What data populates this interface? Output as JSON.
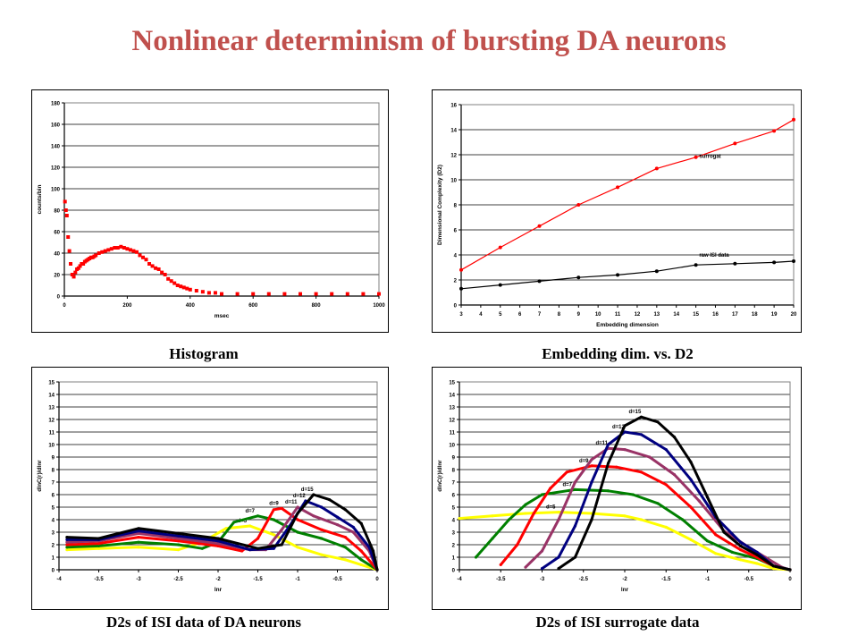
{
  "slide": {
    "title": "Nonlinear determinism of bursting DA neurons",
    "captions": {
      "histogram": "Histogram",
      "embedding": "Embedding dim. vs. D2",
      "isi": "D2s of ISI data of DA neurons",
      "surrogate": "D2s of ISI surrogate data"
    }
  },
  "chart_data": [
    {
      "id": "histogram",
      "type": "scatter",
      "xlabel": "msec",
      "ylabel": "counts/bin",
      "xlim": [
        0,
        1000
      ],
      "ylim": [
        0,
        180
      ],
      "xticks": [
        0,
        200,
        400,
        600,
        800,
        1000
      ],
      "yticks": [
        0,
        20,
        40,
        60,
        80,
        100,
        120,
        140,
        160,
        180
      ],
      "grid": true,
      "series": [
        {
          "color": "#ff0000",
          "x": [
            2,
            5,
            8,
            12,
            16,
            20,
            25,
            30,
            35,
            40,
            45,
            50,
            55,
            60,
            65,
            70,
            75,
            80,
            85,
            90,
            95,
            100,
            110,
            120,
            130,
            140,
            150,
            160,
            170,
            180,
            190,
            200,
            210,
            220,
            230,
            240,
            250,
            260,
            270,
            280,
            290,
            300,
            310,
            320,
            330,
            340,
            350,
            360,
            370,
            380,
            390,
            400,
            420,
            440,
            460,
            480,
            500,
            550,
            600,
            650,
            700,
            750,
            800,
            850,
            900,
            950,
            1000
          ],
          "y": [
            88,
            80,
            75,
            55,
            42,
            30,
            20,
            18,
            22,
            25,
            26,
            28,
            30,
            30,
            32,
            33,
            34,
            35,
            36,
            36,
            37,
            38,
            40,
            41,
            42,
            43,
            44,
            45,
            45,
            46,
            45,
            44,
            43,
            42,
            41,
            38,
            36,
            34,
            30,
            28,
            26,
            25,
            22,
            20,
            16,
            14,
            12,
            10,
            9,
            8,
            7,
            6,
            5,
            4,
            3,
            3,
            2,
            2,
            2,
            2,
            2,
            2,
            2,
            2,
            2,
            2,
            2
          ]
        }
      ]
    },
    {
      "id": "embedding",
      "type": "line",
      "xlabel": "Embedding dimension",
      "ylabel": "Dimensional Complexity (D2)",
      "xlim": [
        3,
        20
      ],
      "ylim": [
        0,
        16
      ],
      "xticks": [
        3,
        4,
        5,
        6,
        7,
        8,
        9,
        10,
        11,
        12,
        13,
        14,
        15,
        16,
        17,
        18,
        19,
        20
      ],
      "yticks": [
        0,
        2,
        4,
        6,
        8,
        10,
        12,
        14,
        16
      ],
      "grid": true,
      "annotations": [
        "surrogat",
        "raw ISI data"
      ],
      "series": [
        {
          "label": "surrogat",
          "color": "#ff0000",
          "x": [
            3,
            5,
            7,
            9,
            11,
            13,
            15,
            17,
            19,
            20
          ],
          "y": [
            2.8,
            4.6,
            6.3,
            8.0,
            9.4,
            10.9,
            11.8,
            12.9,
            13.9,
            14.8
          ]
        },
        {
          "label": "raw ISI data",
          "color": "#000000",
          "x": [
            3,
            5,
            7,
            9,
            11,
            13,
            15,
            17,
            19,
            20
          ],
          "y": [
            1.3,
            1.6,
            1.9,
            2.2,
            2.4,
            2.7,
            3.2,
            3.3,
            3.4,
            3.5
          ]
        }
      ]
    },
    {
      "id": "isi",
      "type": "line",
      "xlabel": "lnr",
      "ylabel": "dlnC(r)/dlnr",
      "xlim": [
        -4,
        0
      ],
      "ylim": [
        0,
        15
      ],
      "xticks": [
        -4,
        -3.5,
        -3,
        -2.5,
        -2,
        -1.5,
        -1,
        -0.5,
        0
      ],
      "yticks": [
        0,
        1,
        2,
        3,
        4,
        5,
        6,
        7,
        8,
        9,
        10,
        11,
        12,
        13,
        14,
        15
      ],
      "grid": true,
      "series": [
        {
          "label": "d=5",
          "color": "#ffff00",
          "x": [
            -3.9,
            -3.5,
            -3.0,
            -2.5,
            -2.2,
            -1.9,
            -1.6,
            -1.3,
            -1.0,
            -0.7,
            -0.4,
            -0.2,
            0
          ],
          "y": [
            1.6,
            1.7,
            1.8,
            1.6,
            2.2,
            3.3,
            3.5,
            2.8,
            1.8,
            1.2,
            0.8,
            0.4,
            0
          ]
        },
        {
          "label": "d=7",
          "color": "#008000",
          "x": [
            -3.9,
            -3.5,
            -3.0,
            -2.5,
            -2.2,
            -2.0,
            -1.8,
            -1.5,
            -1.3,
            -1.0,
            -0.7,
            -0.4,
            -0.2,
            0
          ],
          "y": [
            1.8,
            1.9,
            2.2,
            2.0,
            1.7,
            2.2,
            3.8,
            4.3,
            4.0,
            3.0,
            2.5,
            1.8,
            0.8,
            0
          ]
        },
        {
          "label": "d=9",
          "color": "#ff0000",
          "x": [
            -3.9,
            -3.5,
            -3.0,
            -2.5,
            -2.0,
            -1.7,
            -1.5,
            -1.3,
            -1.2,
            -1.0,
            -0.7,
            -0.4,
            -0.2,
            0
          ],
          "y": [
            2.0,
            2.1,
            2.6,
            2.3,
            1.9,
            1.5,
            2.5,
            4.8,
            4.9,
            4.0,
            3.2,
            2.6,
            1.5,
            0
          ]
        },
        {
          "label": "d=11",
          "color": "#993366",
          "x": [
            -3.9,
            -3.5,
            -3.0,
            -2.5,
            -2.0,
            -1.6,
            -1.4,
            -1.2,
            -1.0,
            -0.8,
            -0.5,
            -0.3,
            -0.1,
            0
          ],
          "y": [
            2.2,
            2.3,
            2.9,
            2.5,
            2.1,
            1.6,
            1.6,
            3.2,
            5.0,
            4.3,
            3.6,
            3.0,
            1.5,
            0
          ]
        },
        {
          "label": "d=12",
          "color": "#000080",
          "x": [
            -3.9,
            -3.5,
            -3.0,
            -2.5,
            -2.0,
            -1.6,
            -1.3,
            -1.1,
            -0.9,
            -0.7,
            -0.5,
            -0.3,
            -0.1,
            0
          ],
          "y": [
            2.4,
            2.4,
            3.1,
            2.7,
            2.3,
            1.6,
            1.7,
            3.5,
            5.5,
            5.0,
            4.2,
            3.4,
            1.8,
            0
          ]
        },
        {
          "label": "d=15",
          "color": "#000000",
          "x": [
            -3.9,
            -3.5,
            -3.0,
            -2.5,
            -2.0,
            -1.5,
            -1.2,
            -1.0,
            -0.8,
            -0.6,
            -0.4,
            -0.2,
            -0.05,
            0
          ],
          "y": [
            2.6,
            2.5,
            3.3,
            2.9,
            2.5,
            1.7,
            2.0,
            4.5,
            6.0,
            5.6,
            4.8,
            3.7,
            1.5,
            0
          ]
        }
      ]
    },
    {
      "id": "surrogate",
      "type": "line",
      "xlabel": "lnr",
      "ylabel": "dlnC(r)/dlnr",
      "xlim": [
        -4,
        0
      ],
      "ylim": [
        0,
        15
      ],
      "xticks": [
        -4,
        -3.5,
        -3,
        -2.5,
        -2,
        -1.5,
        -1,
        -0.5,
        0
      ],
      "yticks": [
        0,
        1,
        2,
        3,
        4,
        5,
        6,
        7,
        8,
        9,
        10,
        11,
        12,
        13,
        14,
        15
      ],
      "grid": true,
      "series": [
        {
          "label": "d=5",
          "color": "#ffff00",
          "x": [
            -4,
            -3.6,
            -3.2,
            -2.8,
            -2.4,
            -2.0,
            -1.8,
            -1.5,
            -1.2,
            -0.9,
            -0.6,
            -0.4,
            -0.2,
            0
          ],
          "y": [
            4.1,
            4.3,
            4.5,
            4.6,
            4.5,
            4.3,
            4.0,
            3.4,
            2.4,
            1.3,
            0.8,
            0.5,
            0.1,
            0
          ]
        },
        {
          "label": "d=7",
          "color": "#008000",
          "x": [
            -3.8,
            -3.6,
            -3.4,
            -3.2,
            -3.0,
            -2.6,
            -2.2,
            -1.9,
            -1.6,
            -1.3,
            -1.0,
            -0.7,
            -0.4,
            -0.2,
            0
          ],
          "y": [
            1.0,
            2.5,
            4.0,
            5.2,
            6.0,
            6.4,
            6.3,
            6.0,
            5.3,
            4.0,
            2.3,
            1.4,
            0.9,
            0.3,
            0
          ]
        },
        {
          "label": "d=9",
          "color": "#ff0000",
          "x": [
            -3.5,
            -3.3,
            -3.1,
            -2.9,
            -2.7,
            -2.4,
            -2.1,
            -1.8,
            -1.5,
            -1.2,
            -0.9,
            -0.6,
            -0.4,
            -0.2,
            0
          ],
          "y": [
            0.4,
            2.0,
            4.5,
            6.5,
            7.8,
            8.3,
            8.2,
            7.8,
            6.8,
            5.0,
            2.8,
            1.6,
            1.0,
            0.3,
            0
          ]
        },
        {
          "label": "d=11",
          "color": "#993366",
          "x": [
            -3.2,
            -3.0,
            -2.8,
            -2.6,
            -2.4,
            -2.2,
            -2.0,
            -1.7,
            -1.4,
            -1.1,
            -0.8,
            -0.5,
            -0.3,
            -0.1,
            0
          ],
          "y": [
            0.2,
            1.5,
            4.0,
            7.0,
            8.8,
            9.7,
            9.6,
            9.0,
            7.6,
            5.5,
            3.1,
            1.8,
            1.0,
            0.2,
            0
          ]
        },
        {
          "label": "d=12",
          "color": "#000080",
          "x": [
            -3.0,
            -2.8,
            -2.6,
            -2.4,
            -2.2,
            -2.0,
            -1.8,
            -1.5,
            -1.2,
            -0.9,
            -0.6,
            -0.4,
            -0.2,
            0
          ],
          "y": [
            0.1,
            1.0,
            3.5,
            7.0,
            10.0,
            11.0,
            10.8,
            9.6,
            7.2,
            4.2,
            2.2,
            1.4,
            0.3,
            0
          ]
        },
        {
          "label": "d=15",
          "color": "#000000",
          "x": [
            -2.8,
            -2.6,
            -2.4,
            -2.2,
            -2.0,
            -1.8,
            -1.6,
            -1.4,
            -1.2,
            -1.0,
            -0.8,
            -0.6,
            -0.4,
            -0.2,
            0
          ],
          "y": [
            0.1,
            1.0,
            4.0,
            8.5,
            11.5,
            12.2,
            11.8,
            10.6,
            8.6,
            5.8,
            3.0,
            1.9,
            1.2,
            0.3,
            0
          ]
        }
      ]
    }
  ]
}
